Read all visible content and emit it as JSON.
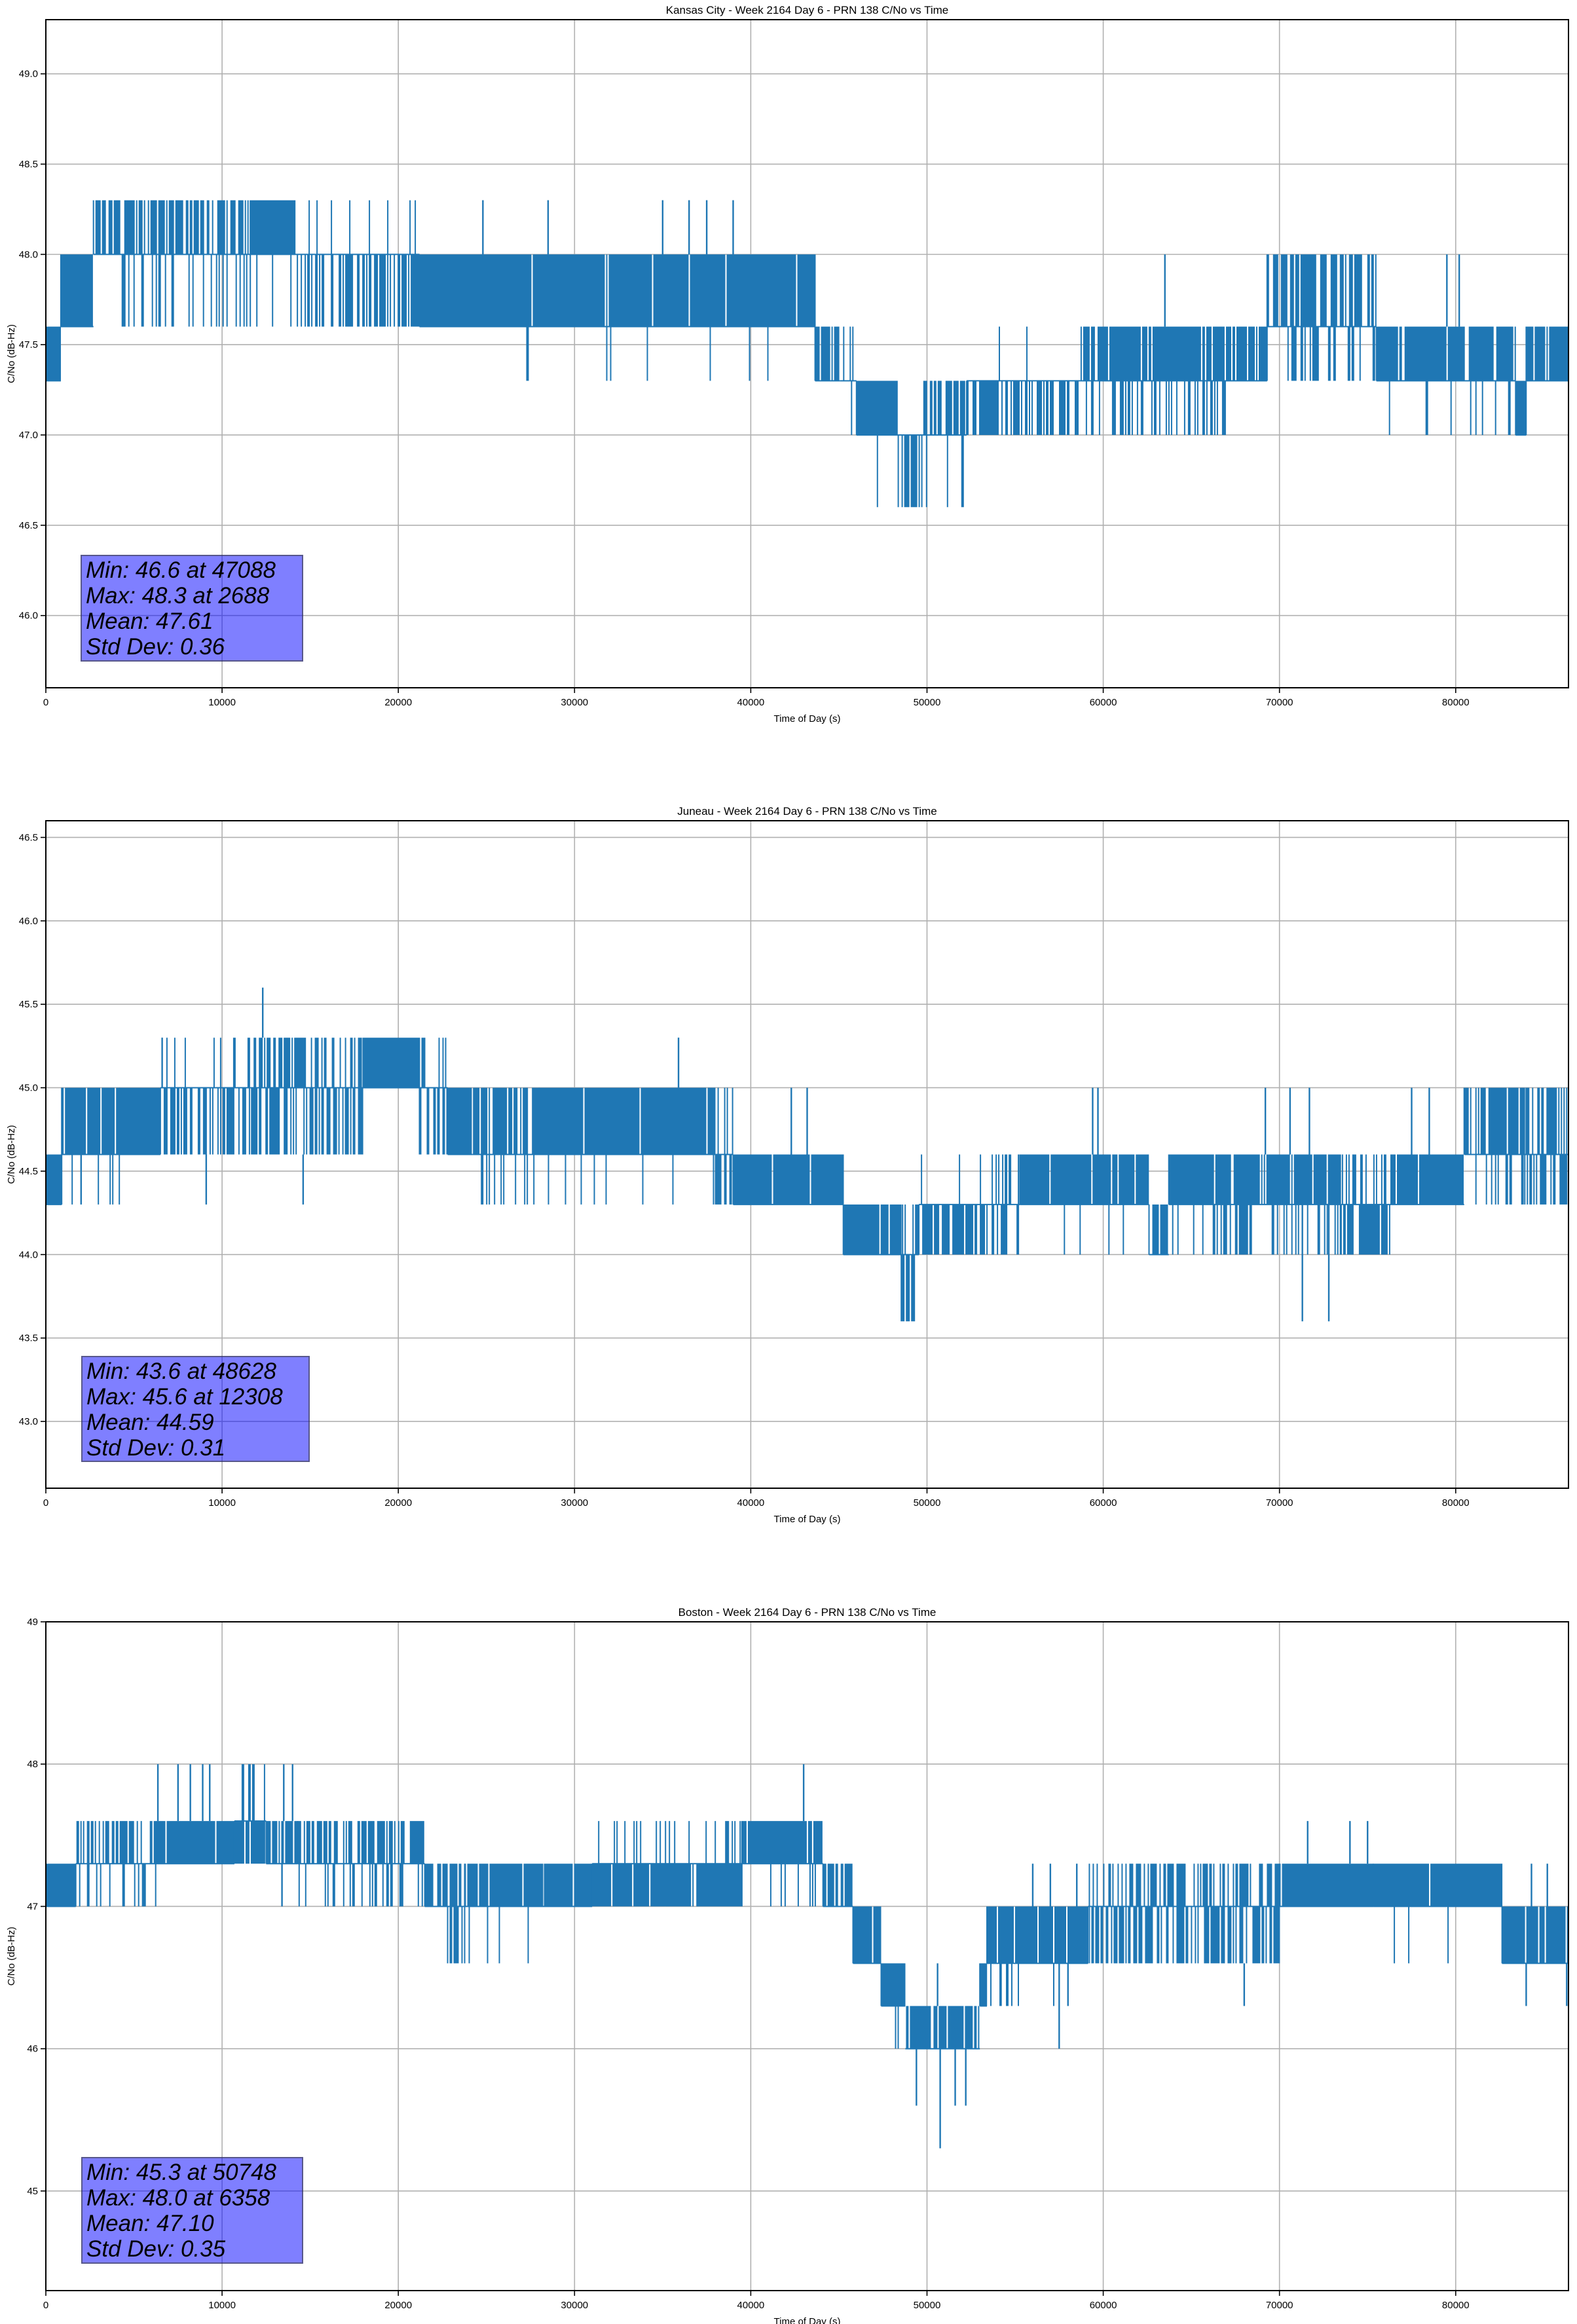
{
  "chart_data": [
    {
      "type": "line",
      "title": "Kansas City - Week 2164 Day 6 - PRN 138 C/No vs Time",
      "xlabel": "Time of Day (s)",
      "ylabel": "C/No (dB-Hz)",
      "xlim": [
        0,
        86400
      ],
      "ylim": [
        45.6,
        49.3
      ],
      "xticks": [
        0,
        10000,
        20000,
        30000,
        40000,
        50000,
        60000,
        70000,
        80000
      ],
      "xtick_labels": [
        "0",
        "10000",
        "20000",
        "30000",
        "40000",
        "50000",
        "60000",
        "70000",
        "80000"
      ],
      "yticks": [
        46.0,
        46.5,
        47.0,
        47.5,
        48.0,
        48.5,
        49.0
      ],
      "ytick_labels": [
        "46.0",
        "46.5",
        "47.0",
        "47.5",
        "48.0",
        "48.5",
        "49.0"
      ],
      "grid": true,
      "color": "#1f77b4",
      "stats": {
        "min": 46.6,
        "min_time": 47088,
        "max": 48.3,
        "max_time": 2688,
        "mean": 47.61,
        "std_dev": 0.36
      },
      "stats_lines": [
        "Min: 46.6 at 47088",
        "Max: 48.3 at 2688",
        "Mean: 47.61",
        "Std Dev: 0.36"
      ],
      "segments_format": [
        "t_start",
        "t_end",
        "base",
        "upper_level",
        "upper_fraction",
        "lower_level",
        "lower_fraction"
      ],
      "segments": [
        [
          0,
          850,
          47.3,
          47.6,
          1,
          null,
          0
        ],
        [
          850,
          2700,
          47.6,
          48.0,
          1,
          47.3,
          0.03
        ],
        [
          2700,
          11600,
          48.0,
          48.3,
          0.65,
          47.6,
          0.25
        ],
        [
          11600,
          14200,
          48.0,
          48.3,
          1,
          47.6,
          0.1
        ],
        [
          14200,
          21200,
          48.0,
          48.3,
          0.08,
          47.6,
          0.55
        ],
        [
          21200,
          43650,
          47.6,
          48.0,
          0.97,
          47.3,
          0.015
        ],
        [
          43650,
          45050,
          47.3,
          47.6,
          0.95,
          null,
          0
        ],
        [
          45050,
          46000,
          47.3,
          47.6,
          0.1,
          47.0,
          0.15
        ],
        [
          46000,
          48370,
          47.0,
          47.3,
          0.95,
          46.6,
          0.05
        ],
        [
          48370,
          49750,
          47.0,
          47.3,
          0.15,
          46.6,
          0.85
        ],
        [
          49750,
          52250,
          47.0,
          47.3,
          0.6,
          46.6,
          0.15
        ],
        [
          52250,
          58750,
          47.3,
          47.6,
          0.06,
          47.0,
          0.6
        ],
        [
          58750,
          67000,
          47.3,
          47.6,
          0.9,
          47.0,
          0.35
        ],
        [
          67000,
          69300,
          47.3,
          47.6,
          0.9,
          47.0,
          0.05
        ],
        [
          69300,
          75500,
          47.6,
          48.0,
          0.75,
          47.3,
          0.3
        ],
        [
          75500,
          83400,
          47.3,
          47.6,
          0.9,
          47.0,
          0.12
        ],
        [
          83400,
          84000,
          47.0,
          47.3,
          1,
          null,
          0
        ],
        [
          84000,
          86400,
          47.3,
          47.6,
          0.95,
          null,
          0
        ]
      ],
      "spikes": [
        [
          63500,
          47.6,
          48.0
        ],
        [
          79500,
          47.6,
          48.0
        ],
        [
          80200,
          47.6,
          48.0
        ],
        [
          35000,
          48.0,
          48.3
        ],
        [
          36500,
          48.0,
          48.3
        ],
        [
          37500,
          48.0,
          48.3
        ],
        [
          39000,
          48.0,
          48.3
        ],
        [
          28500,
          48.0,
          48.3
        ],
        [
          24800,
          48.0,
          48.3
        ]
      ]
    },
    {
      "type": "line",
      "title": "Juneau - Week 2164 Day 6 - PRN 138 C/No vs Time",
      "xlabel": "Time of Day (s)",
      "ylabel": "C/No (dB-Hz)",
      "xlim": [
        0,
        86400
      ],
      "ylim": [
        42.6,
        46.6
      ],
      "xticks": [
        0,
        10000,
        20000,
        30000,
        40000,
        50000,
        60000,
        70000,
        80000
      ],
      "xtick_labels": [
        "0",
        "10000",
        "20000",
        "30000",
        "40000",
        "50000",
        "60000",
        "70000",
        "80000"
      ],
      "yticks": [
        43.0,
        43.5,
        44.0,
        44.5,
        45.0,
        45.5,
        46.0,
        46.5
      ],
      "ytick_labels": [
        "43.0",
        "43.5",
        "44.0",
        "44.5",
        "45.0",
        "45.5",
        "46.0",
        "46.5"
      ],
      "grid": true,
      "color": "#1f77b4",
      "stats": {
        "min": 43.6,
        "min_time": 48628,
        "max": 45.6,
        "max_time": 12308,
        "mean": 44.59,
        "std_dev": 0.31
      },
      "stats_lines": [
        "Min: 43.6 at 48628",
        "Max: 45.6 at 12308",
        "Mean: 44.59",
        "Std Dev: 0.31"
      ],
      "segments_format": [
        "t_start",
        "t_end",
        "base",
        "upper_level",
        "upper_fraction",
        "lower_level",
        "lower_fraction"
      ],
      "segments": [
        [
          0,
          900,
          44.3,
          44.6,
          1,
          null,
          0
        ],
        [
          900,
          4200,
          44.6,
          45.0,
          0.9,
          44.3,
          0.15
        ],
        [
          4200,
          6500,
          44.6,
          45.0,
          1,
          null,
          0
        ],
        [
          6500,
          11600,
          45.0,
          45.3,
          0.2,
          44.6,
          0.65
        ],
        [
          11600,
          15000,
          45.0,
          45.3,
          0.6,
          44.6,
          0.55
        ],
        [
          15000,
          18000,
          45.0,
          45.3,
          0.5,
          44.6,
          0.5
        ],
        [
          18000,
          21200,
          45.0,
          45.3,
          0.97,
          44.6,
          0.03
        ],
        [
          21200,
          22800,
          45.0,
          45.3,
          0.3,
          44.6,
          0.35
        ],
        [
          22800,
          24200,
          44.6,
          45.0,
          1,
          null,
          0
        ],
        [
          24200,
          28000,
          44.6,
          45.0,
          0.7,
          44.3,
          0.3
        ],
        [
          28000,
          38000,
          44.6,
          45.0,
          0.97,
          44.3,
          0.06
        ],
        [
          38000,
          39000,
          44.6,
          45.0,
          0.4,
          44.3,
          0.5
        ],
        [
          39000,
          45250,
          44.3,
          44.6,
          0.97,
          null,
          0
        ],
        [
          45250,
          48540,
          44.0,
          44.3,
          0.9,
          null,
          0
        ],
        [
          48540,
          49540,
          44.0,
          44.3,
          0.5,
          43.6,
          0.6
        ],
        [
          49540,
          53700,
          44.3,
          44.6,
          0.08,
          44.0,
          0.75
        ],
        [
          53700,
          55270,
          44.3,
          44.6,
          0.4,
          44.0,
          0.5
        ],
        [
          55270,
          62600,
          44.3,
          44.6,
          0.95,
          44.0,
          0.05
        ],
        [
          62600,
          63720,
          44.0,
          44.3,
          0.9,
          null,
          0
        ],
        [
          63720,
          73500,
          44.3,
          44.6,
          0.95,
          44.0,
          0.25
        ],
        [
          73500,
          76330,
          44.3,
          44.6,
          0.5,
          44.0,
          0.75
        ],
        [
          76330,
          80480,
          44.3,
          44.6,
          0.97,
          null,
          0
        ],
        [
          80480,
          83920,
          44.6,
          45.0,
          0.8,
          44.3,
          0.3
        ],
        [
          83920,
          86400,
          44.6,
          45.0,
          0.6,
          44.3,
          0.5
        ]
      ],
      "spikes": [
        [
          12308,
          45.3,
          45.6
        ],
        [
          35900,
          45.0,
          45.3
        ],
        [
          9100,
          44.6,
          44.3
        ],
        [
          14600,
          44.6,
          44.3
        ],
        [
          71300,
          44.3,
          43.6
        ],
        [
          72800,
          44.3,
          43.6
        ],
        [
          59400,
          44.6,
          45.0
        ],
        [
          59700,
          44.6,
          45.0
        ],
        [
          69200,
          44.6,
          45.0
        ],
        [
          70600,
          44.6,
          45.0
        ],
        [
          71700,
          44.6,
          45.0
        ],
        [
          77500,
          44.6,
          45.0
        ],
        [
          78500,
          44.6,
          45.0
        ],
        [
          42300,
          44.6,
          45.0
        ],
        [
          43200,
          44.6,
          45.0
        ],
        [
          6600,
          45.0,
          45.3
        ],
        [
          2000,
          44.6,
          44.3
        ]
      ]
    },
    {
      "type": "line",
      "title": "Boston - Week 2164 Day 6 - PRN 138 C/No vs Time",
      "xlabel": "Time of Day (s)",
      "ylabel": "C/No (dB-Hz)",
      "xlim": [
        0,
        86400
      ],
      "ylim": [
        44.3,
        49.0
      ],
      "xticks": [
        0,
        10000,
        20000,
        30000,
        40000,
        50000,
        60000,
        70000,
        80000
      ],
      "xtick_labels": [
        "0",
        "10000",
        "20000",
        "30000",
        "40000",
        "50000",
        "60000",
        "70000",
        "80000"
      ],
      "yticks": [
        45,
        46,
        47,
        48,
        49
      ],
      "ytick_labels": [
        "45",
        "46",
        "47",
        "48",
        "49"
      ],
      "grid": true,
      "color": "#1f77b4",
      "stats": {
        "min": 45.3,
        "min_time": 50748,
        "max": 48.0,
        "max_time": 6358,
        "mean": 47.1,
        "std_dev": 0.35
      },
      "stats_lines": [
        "Min: 45.3 at 50748",
        "Max: 48.0 at 6358",
        "Mean: 47.10",
        "Std Dev: 0.35"
      ],
      "segments_format": [
        "t_start",
        "t_end",
        "base",
        "upper_level",
        "upper_fraction",
        "lower_level",
        "lower_fraction"
      ],
      "segments": [
        [
          0,
          1700,
          47.0,
          47.3,
          1,
          null,
          0
        ],
        [
          1700,
          6300,
          47.3,
          47.6,
          0.6,
          47.0,
          0.3
        ],
        [
          6300,
          10700,
          47.3,
          47.6,
          0.95,
          null,
          0
        ],
        [
          10700,
          12500,
          47.6,
          48.0,
          0.4,
          47.3,
          0.8
        ],
        [
          12500,
          14300,
          47.3,
          47.6,
          0.9,
          null,
          0
        ],
        [
          14300,
          21500,
          47.3,
          47.6,
          0.7,
          47.0,
          0.3
        ],
        [
          21500,
          22800,
          47.0,
          47.3,
          0.8,
          null,
          0
        ],
        [
          22800,
          23800,
          47.0,
          47.3,
          0.6,
          46.6,
          0.8
        ],
        [
          23800,
          28300,
          47.0,
          47.3,
          0.95,
          46.6,
          0.06
        ],
        [
          28300,
          31000,
          47.0,
          47.3,
          0.97,
          null,
          0
        ],
        [
          31000,
          39500,
          47.3,
          47.6,
          0.15,
          47.0,
          0.9
        ],
        [
          39500,
          44100,
          47.3,
          47.6,
          0.95,
          47.0,
          0.15
        ],
        [
          44100,
          45800,
          47.0,
          47.3,
          0.8,
          null,
          0
        ],
        [
          45800,
          47400,
          46.6,
          47.0,
          0.95,
          null,
          0
        ],
        [
          47400,
          48770,
          46.3,
          46.6,
          0.95,
          46.0,
          0.1
        ],
        [
          48770,
          53000,
          46.0,
          46.3,
          0.9,
          null,
          0
        ],
        [
          53000,
          53400,
          46.3,
          46.6,
          1,
          null,
          0
        ],
        [
          53400,
          59140,
          46.6,
          47.0,
          0.97,
          46.3,
          0.04
        ],
        [
          59140,
          70030,
          47.0,
          47.3,
          0.5,
          46.6,
          0.6
        ],
        [
          70030,
          75330,
          47.0,
          47.3,
          0.97,
          46.6,
          0.02
        ],
        [
          75330,
          82630,
          47.0,
          47.3,
          0.95,
          46.6,
          0.05
        ],
        [
          82630,
          86400,
          46.6,
          47.0,
          0.9,
          null,
          0
        ]
      ],
      "spikes": [
        [
          6358,
          47.6,
          48.0
        ],
        [
          7500,
          47.6,
          48.0
        ],
        [
          8200,
          47.6,
          48.0
        ],
        [
          8900,
          47.6,
          48.0
        ],
        [
          9300,
          47.6,
          48.0
        ],
        [
          13500,
          47.6,
          48.0
        ],
        [
          14000,
          47.6,
          48.0
        ],
        [
          43000,
          47.6,
          48.0
        ],
        [
          49400,
          46.0,
          45.6
        ],
        [
          50748,
          46.0,
          45.3
        ],
        [
          51600,
          46.0,
          45.6
        ],
        [
          52200,
          46.0,
          45.6
        ],
        [
          50600,
          46.3,
          46.6
        ],
        [
          57500,
          46.6,
          46.0
        ],
        [
          58000,
          46.6,
          46.3
        ],
        [
          56000,
          47.0,
          47.3
        ],
        [
          57000,
          47.0,
          47.3
        ],
        [
          58500,
          47.0,
          47.3
        ],
        [
          71600,
          47.3,
          47.6
        ],
        [
          74000,
          47.3,
          47.6
        ],
        [
          75000,
          47.3,
          47.6
        ],
        [
          68000,
          46.6,
          46.3
        ],
        [
          84000,
          46.6,
          46.3
        ],
        [
          86300,
          46.6,
          46.3
        ],
        [
          84300,
          47.0,
          47.3
        ],
        [
          85200,
          47.0,
          47.3
        ],
        [
          54200,
          46.6,
          46.3
        ],
        [
          13400,
          47.3,
          47.0
        ]
      ]
    }
  ]
}
